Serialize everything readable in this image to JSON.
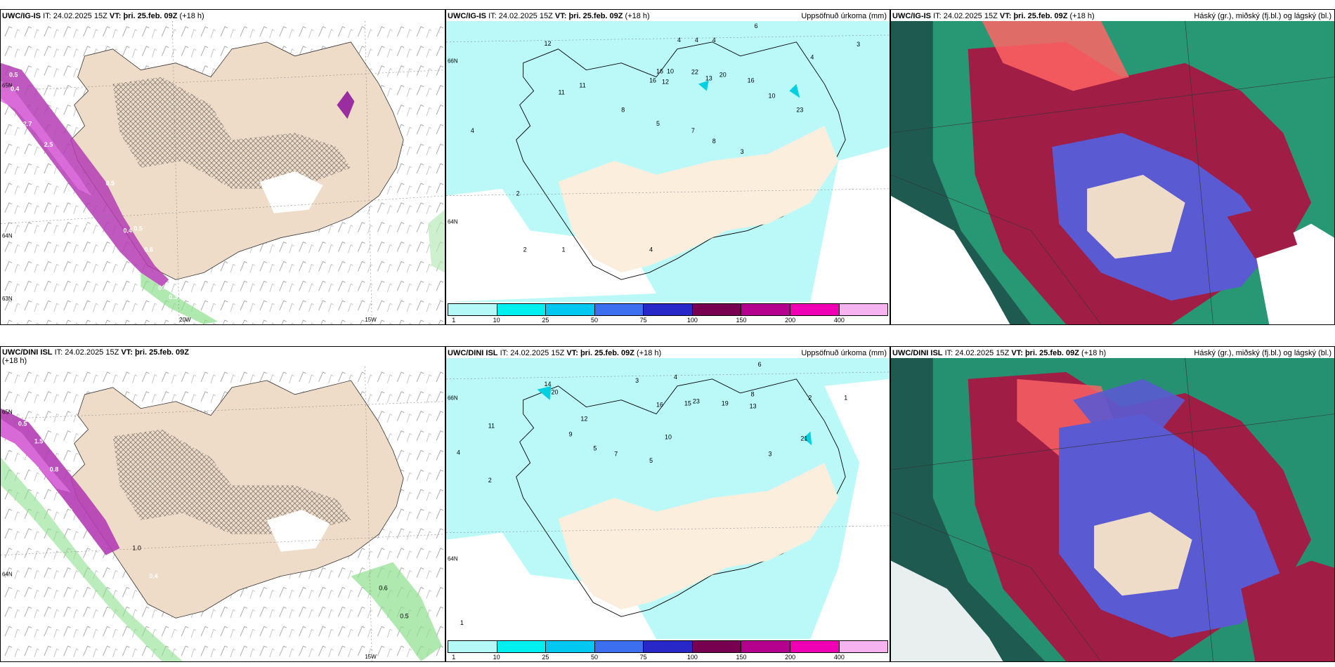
{
  "panels": {
    "p1": {
      "model": "UWC/IG-IS",
      "it_label": "IT:",
      "it": "24.02.2025 15Z",
      "vt_label": "VT:",
      "vt": "þri. 25.feb. 09Z",
      "lead": "(+18 h)",
      "right_title": "",
      "lat_labels": [
        "65N",
        "64N",
        "63N"
      ],
      "lon_labels": [
        "20W",
        "15W"
      ],
      "values": [
        "0.5",
        "0.4",
        "2.7",
        "2.5",
        "3.7",
        "0.5",
        "0.4",
        "0.4",
        "0.5",
        "0.6",
        "0.4",
        "0.3"
      ]
    },
    "p2": {
      "model": "UWC/IG-IS",
      "it_label": "IT:",
      "it": "24.02.2025 15Z",
      "vt_label": "VT:",
      "vt": "þri. 25.feb. 09Z",
      "lead": "(+18 h)",
      "right_title": "Uppsöfnuð úrkoma (mm)",
      "lat_labels": [
        "66N",
        "64N"
      ],
      "values": [
        "6",
        "4",
        "4",
        "4",
        "3",
        "4",
        "12",
        "16",
        "10",
        "16",
        "12",
        "22",
        "20",
        "16",
        "13",
        "11",
        "11",
        "10",
        "23",
        "8",
        "5",
        "7",
        "8",
        "3",
        "2",
        "4",
        "1",
        "2",
        "4"
      ]
    },
    "p3": {
      "model": "UWC/IG-IS",
      "it_label": "IT:",
      "it": "24.02.2025 15Z",
      "vt_label": "VT:",
      "vt": "þri. 25.feb. 09Z",
      "lead": "(+18 h)",
      "right_title": "Háský (gr.), miðský (fj.bl.) og lágský (bl.)"
    },
    "p4": {
      "model": "UWC/DINI ISL",
      "it_label": "IT:",
      "it": "24.02.2025 15Z",
      "vt_label": "VT:",
      "vt": "þri. 25.feb. 09Z",
      "lead": "(+18 h)",
      "right_title": "",
      "lat_labels": [
        "65N",
        "64N"
      ],
      "lon_labels": [
        "15W"
      ],
      "values": [
        "0.5",
        "1.5",
        "2.5",
        "2.7",
        "1.6",
        "0.8",
        "2.1",
        "1.2",
        "1.0",
        "0.4",
        "0.6",
        "0.5"
      ]
    },
    "p5": {
      "model": "UWC/DINI ISL",
      "it_label": "IT:",
      "it": "24.02.2025 15Z",
      "vt_label": "VT:",
      "vt": "þri. 25.feb. 09Z",
      "lead": "(+18 h)",
      "right_title": "Uppsöfnuð úrkoma (mm)",
      "lat_labels": [
        "66N",
        "64N"
      ],
      "values": [
        "6",
        "3",
        "4",
        "14",
        "20",
        "16",
        "15",
        "23",
        "19",
        "13",
        "8",
        "2",
        "1",
        "12",
        "21",
        "10",
        "5",
        "3",
        "2",
        "1",
        "4",
        "5",
        "7",
        "9",
        "11"
      ]
    },
    "p6": {
      "model": "UWC/DINI ISL",
      "it_label": "IT:",
      "it": "24.02.2025 15Z",
      "vt_label": "VT:",
      "vt": "þri. 25.feb. 09Z",
      "lead": "(+18 h)",
      "right_title": "Háský (gr.), miðský (fj.bl.) og lágský (bl.)"
    }
  },
  "colorbar": {
    "ticks": [
      "1",
      "10",
      "25",
      "50",
      "75",
      "100",
      "150",
      "200",
      "400"
    ],
    "colors": [
      "#b4f8f8",
      "#00f0f0",
      "#00c8f0",
      "#3c6ef0",
      "#2828c8",
      "#780050",
      "#b4008c",
      "#f000b4",
      "#f5b4f0"
    ]
  },
  "colors": {
    "land": "#efdcc8",
    "precip_light": "#b4f8f8",
    "purple": "#b43cb4",
    "cloud_high": "#1e5a50",
    "cloud_mid_red": "#a01e46",
    "cloud_low_blue": "#5a5ad2"
  }
}
